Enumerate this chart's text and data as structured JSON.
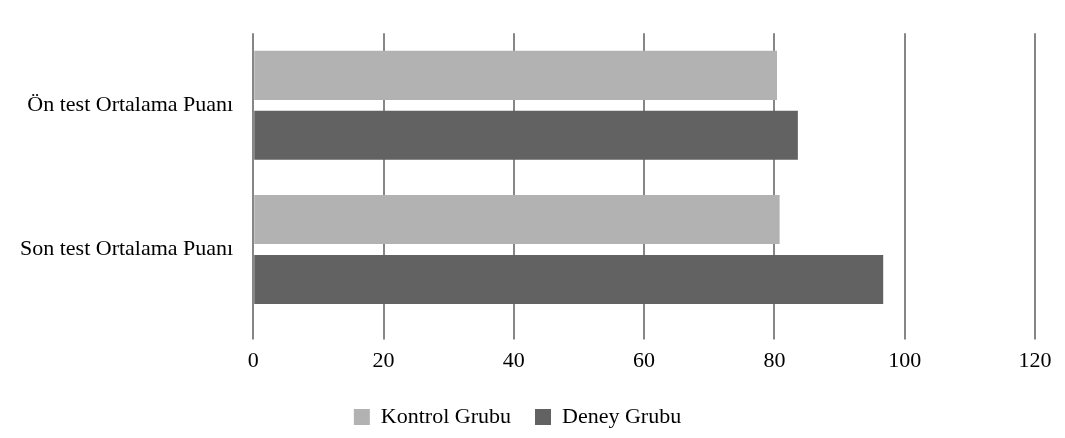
{
  "chart_data": {
    "type": "bar",
    "orientation": "horizontal",
    "categories": [
      "Ön test Ortalama Puanı",
      "Son test Ortalama Puanı"
    ],
    "series": [
      {
        "name": "Kontrol Grubu",
        "color": "#b2b2b2",
        "values": [
          80.4,
          80.8
        ]
      },
      {
        "name": "Deney Grubu",
        "color": "#626262",
        "values": [
          83.6,
          96.7
        ]
      }
    ],
    "xlim": [
      0,
      120
    ],
    "xticks": [
      0,
      20,
      40,
      60,
      80,
      100,
      120
    ],
    "grid": "x",
    "legend": "bottom"
  }
}
